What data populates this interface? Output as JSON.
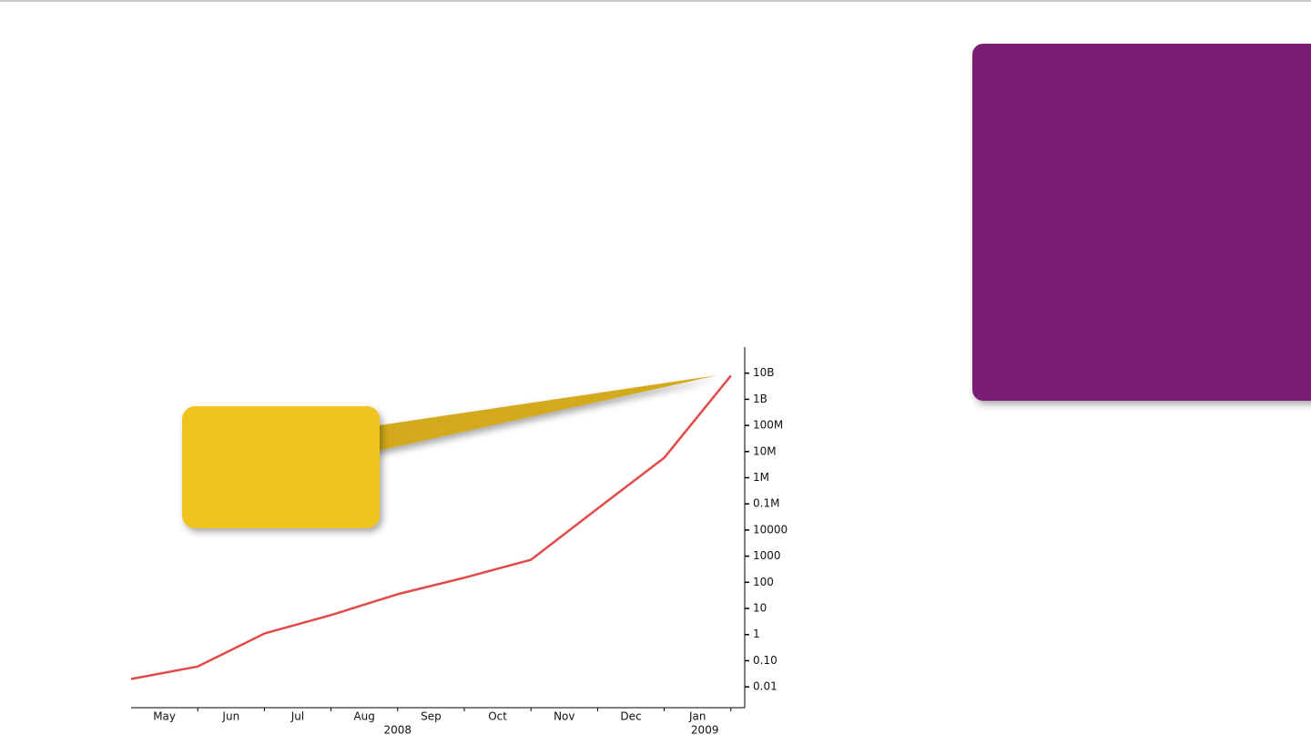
{
  "chart_data": {
    "type": "line",
    "log_scale_y": true,
    "x": [
      "2008-05",
      "2008-06",
      "2008-07",
      "2008-08",
      "2008-09",
      "2008-10",
      "2008-11",
      "2008-12",
      "2009-01",
      "2009-02"
    ],
    "series": [
      {
        "color": "#e24a47",
        "values": [
          0.02,
          0.06,
          1.1,
          5.6,
          35,
          150,
          730,
          66000,
          5800000,
          8000000000
        ]
      }
    ],
    "xlim": [
      "2008-05",
      "2009-02"
    ],
    "month_labels": [
      "May",
      "Jun",
      "Jul",
      "Aug",
      "Sep",
      "Oct",
      "Nov",
      "Dec",
      "Jan"
    ],
    "year_labels": [
      "2008",
      "2009"
    ],
    "ylim": [
      0.0016,
      100000000000
    ],
    "yticks": [
      0.01,
      {
        "value": 0.1,
        "label": "0.10"
      },
      1,
      10,
      100,
      1000,
      10000,
      {
        "value": 100000,
        "label": "0.1M"
      },
      {
        "value": 1000000,
        "label": "1M"
      },
      {
        "value": 10000000,
        "label": "10M"
      },
      {
        "value": 100000000,
        "label": "100M"
      },
      {
        "value": 1000000000,
        "label": "1B"
      },
      {
        "value": 10000000000,
        "label": "10B"
      }
    ]
  }
}
